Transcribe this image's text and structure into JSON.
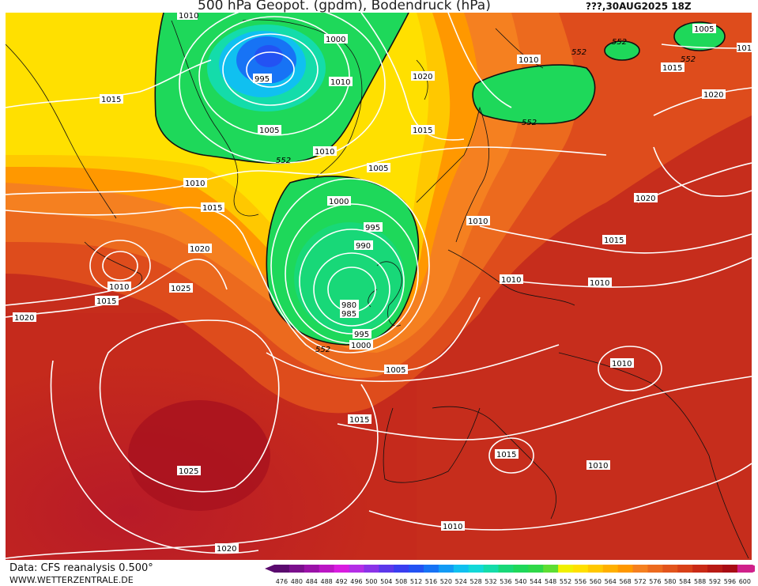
{
  "header": {
    "title": "500 hPa Geopot. (gpdm), Bodendruck (hPa)",
    "run": "???,30AUG2025 18Z"
  },
  "footer": {
    "data_source": "Data: CFS reanalysis 0.500°",
    "website": "WWW.WETTERZENTRALE.DE"
  },
  "colorbar": {
    "ticks": [
      "476",
      "480",
      "484",
      "488",
      "492",
      "496",
      "500",
      "504",
      "508",
      "512",
      "516",
      "520",
      "524",
      "528",
      "532",
      "536",
      "540",
      "544",
      "548",
      "552",
      "556",
      "560",
      "564",
      "568",
      "572",
      "576",
      "580",
      "584",
      "588",
      "592",
      "596",
      "600"
    ],
    "colors": [
      "#5a0a6e",
      "#7a0f8c",
      "#9a12a8",
      "#bb16c4",
      "#d81ce0",
      "#b42ee6",
      "#8a33e8",
      "#5c38ea",
      "#3a3ef0",
      "#2352f3",
      "#1773f5",
      "#129bf5",
      "#10c0f0",
      "#12d8d8",
      "#14dcaa",
      "#18d878",
      "#1ed85a",
      "#2fd848",
      "#5ede33",
      "#f0f000",
      "#ffe000",
      "#ffc800",
      "#ffb000",
      "#ff9800",
      "#f58020",
      "#ec6a1e",
      "#e2541c",
      "#d84018",
      "#c92a16",
      "#b81a14",
      "#a80c14",
      "#d0208a"
    ]
  },
  "map": {
    "contour_color": "#ffffff",
    "labels": [
      "1010",
      "1000",
      "995",
      "1005",
      "1010",
      "1020",
      "1015",
      "1010",
      "552",
      "1005",
      "552",
      "101",
      "1015",
      "1015",
      "1020",
      "1010",
      "1005",
      "552",
      "552",
      "552",
      "1010",
      "1015",
      "1020",
      "1000",
      "995",
      "990",
      "1020",
      "1010",
      "1015",
      "1025",
      "980",
      "985",
      "995",
      "1000",
      "552",
      "1020",
      "1010",
      "1015",
      "1010",
      "1005",
      "1015",
      "1010",
      "1015",
      "1010",
      "1025",
      "1010",
      "1020",
      "1010"
    ]
  }
}
